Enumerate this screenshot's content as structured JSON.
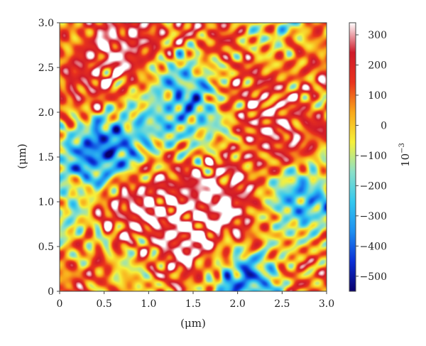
{
  "chart_data": {
    "type": "heatmap",
    "title": "",
    "xlabel": "(μm)",
    "ylabel": "(μm)",
    "xlim": [
      0,
      3.0
    ],
    "ylim": [
      0,
      3.0
    ],
    "x_ticks": [
      "0",
      "0.5",
      "1.0",
      "1.5",
      "2.0",
      "2.5",
      "3.0"
    ],
    "y_ticks": [
      "0",
      "0.5",
      "1.0",
      "1.5",
      "2.0",
      "2.5",
      "3.0"
    ],
    "colorbar": {
      "label": "10",
      "label_exponent": "−3",
      "range": [
        -550,
        340
      ],
      "ticks": [
        "300",
        "200",
        "100",
        "0",
        "−100",
        "−200",
        "−300",
        "−400",
        "−500"
      ],
      "colors": [
        "#08006b",
        "#0b2fd6",
        "#1e8ff0",
        "#33c8ef",
        "#8be0c8",
        "#f6f03a",
        "#f9a81a",
        "#e9321d",
        "#cf1a2a",
        "#ffffff"
      ]
    },
    "map": {
      "description_units": "value in units of 10^-3 over x,y in μm",
      "base_value": 0,
      "features": [
        {
          "x": 0.72,
          "y": 2.75,
          "value": 250,
          "kind": "high"
        },
        {
          "x": 0.3,
          "y": 2.15,
          "value": 180,
          "kind": "high"
        },
        {
          "x": 1.6,
          "y": 2.85,
          "value": 190,
          "kind": "high"
        },
        {
          "x": 1.85,
          "y": 2.2,
          "value": 130,
          "kind": "high"
        },
        {
          "x": 2.1,
          "y": 2.05,
          "value": 160,
          "kind": "high"
        },
        {
          "x": 2.8,
          "y": 2.75,
          "value": 170,
          "kind": "high"
        },
        {
          "x": 2.6,
          "y": 1.6,
          "value": 210,
          "kind": "high"
        },
        {
          "x": 0.5,
          "y": 1.05,
          "value": 140,
          "kind": "high"
        },
        {
          "x": 0.8,
          "y": 0.8,
          "value": 280,
          "kind": "high"
        },
        {
          "x": 1.8,
          "y": 1.15,
          "value": 230,
          "kind": "high"
        },
        {
          "x": 2.15,
          "y": 0.7,
          "value": 230,
          "kind": "high"
        },
        {
          "x": 1.4,
          "y": 0.45,
          "value": 300,
          "kind": "high"
        },
        {
          "x": 1.1,
          "y": 1.3,
          "value": 120,
          "kind": "high"
        },
        {
          "x": 0.25,
          "y": 0.25,
          "value": 150,
          "kind": "high"
        },
        {
          "x": 2.6,
          "y": 0.2,
          "value": 140,
          "kind": "high"
        },
        {
          "x": 0.45,
          "y": 1.55,
          "value": -520,
          "kind": "low"
        },
        {
          "x": 2.1,
          "y": 0.15,
          "value": -490,
          "kind": "low"
        },
        {
          "x": 1.45,
          "y": 2.4,
          "value": -330,
          "kind": "low"
        },
        {
          "x": 2.75,
          "y": 1.1,
          "value": -300,
          "kind": "low"
        },
        {
          "x": 1.7,
          "y": 1.9,
          "value": -260,
          "kind": "low"
        },
        {
          "x": 0.85,
          "y": 0.45,
          "value": -240,
          "kind": "low"
        },
        {
          "x": 2.55,
          "y": 2.95,
          "value": -220,
          "kind": "low"
        },
        {
          "x": 1.0,
          "y": 1.8,
          "value": -150,
          "kind": "low"
        },
        {
          "x": 0.15,
          "y": 0.75,
          "value": -230,
          "kind": "low"
        },
        {
          "x": 2.45,
          "y": 0.9,
          "value": -170,
          "kind": "low"
        }
      ]
    }
  }
}
